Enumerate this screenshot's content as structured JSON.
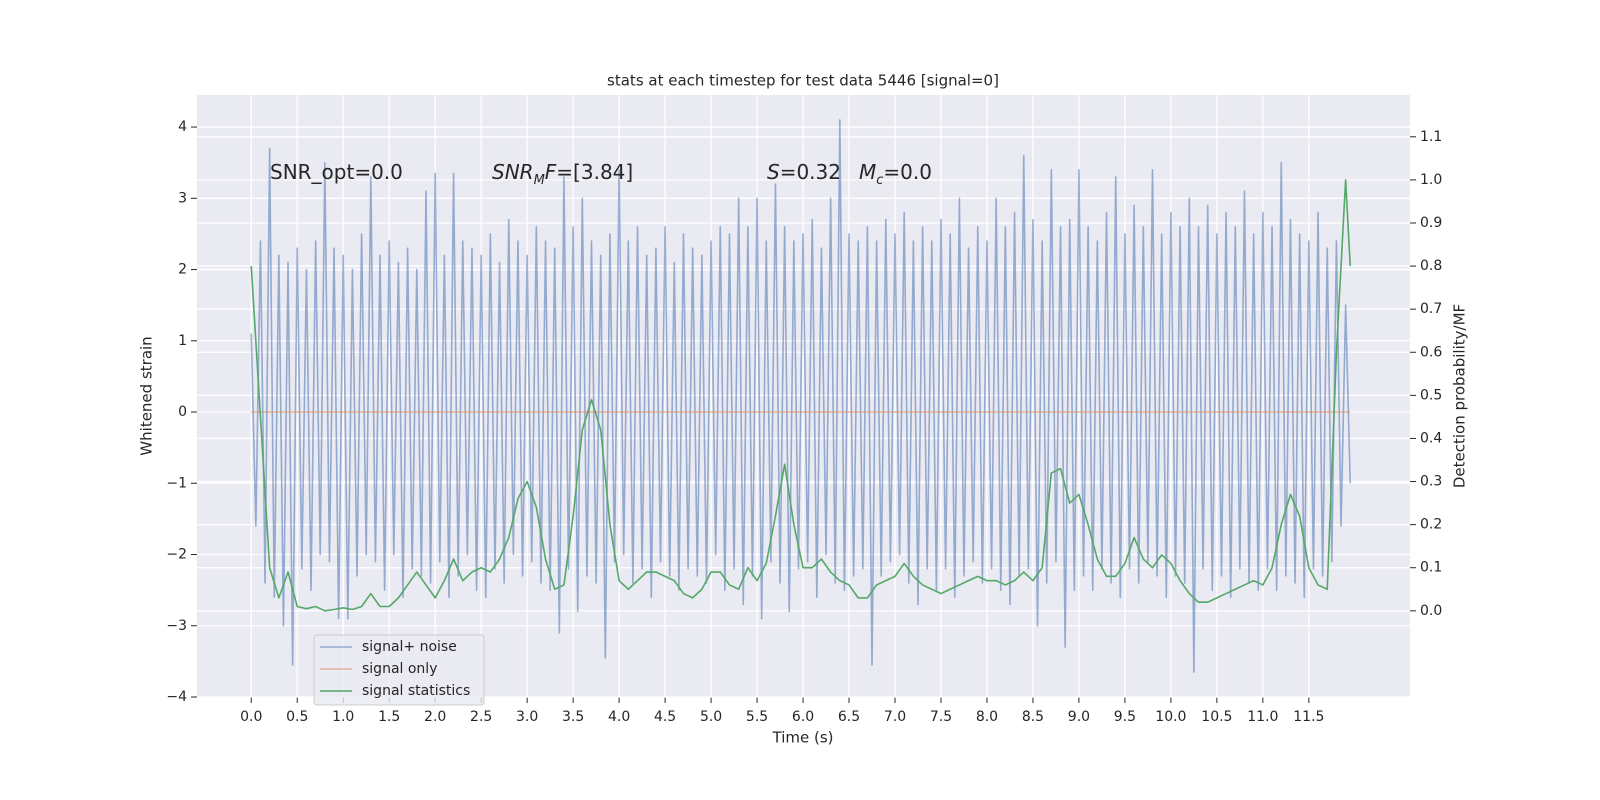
{
  "chart_data": {
    "type": "line",
    "title": "stats at each timestep for test data 5446 [signal=0]",
    "xlabel": "Time (s)",
    "ylabel": "Whitened strain",
    "y2label": "Detection probability/MF",
    "xlim": [
      -0.59,
      12.6
    ],
    "ylim": [
      -4,
      4.45
    ],
    "y2lim": [
      -0.2,
      1.197
    ],
    "xticks": [
      {
        "value": 0,
        "label": "0.0"
      },
      0.5,
      {
        "value": 1,
        "label": "1.0"
      },
      1.5,
      {
        "value": 2,
        "label": "2.0"
      },
      2.5,
      {
        "value": 3,
        "label": "3.0"
      },
      3.5,
      {
        "value": 4,
        "label": "4.0"
      },
      4.5,
      {
        "value": 5,
        "label": "5.0"
      },
      5.5,
      {
        "value": 6,
        "label": "6.0"
      },
      6.5,
      {
        "value": 7,
        "label": "7.0"
      },
      7.5,
      {
        "value": 8,
        "label": "8.0"
      },
      8.5,
      {
        "value": 9,
        "label": "9.0"
      },
      9.5,
      {
        "value": 10,
        "label": "10.0"
      },
      10.5,
      {
        "value": 11,
        "label": "11.0"
      },
      11.5
    ],
    "yticks": [
      {
        "value": -4,
        "label": "−4"
      },
      {
        "value": -3,
        "label": "−3"
      },
      {
        "value": -2,
        "label": "−2"
      },
      {
        "value": -1,
        "label": "−1"
      },
      0,
      1,
      2,
      3,
      4
    ],
    "y2ticks": [
      {
        "value": 0,
        "label": "0.0"
      },
      0.1,
      0.2,
      0.3,
      0.4,
      0.5,
      0.6,
      0.7,
      0.8,
      0.9,
      {
        "value": 1,
        "label": "1.0"
      },
      1.1
    ],
    "grid": true,
    "legend": "lower left",
    "annotations": [
      [
        "SNR_opt=0.0"
      ],
      [
        "SNR",
        "M",
        "F",
        "=[3.84]"
      ],
      [
        "S",
        "=0.32"
      ],
      [
        "M",
        "c",
        "=0.0"
      ]
    ],
    "series": [
      {
        "name": "signal+ noise",
        "color": "#4c72b0",
        "alpha": 0.55,
        "x": [
          0,
          0.05,
          0.1,
          0.15,
          0.2,
          0.25,
          0.3,
          0.35,
          0.4,
          0.45,
          0.5,
          0.55,
          0.6,
          0.65,
          0.7,
          0.75,
          0.8,
          0.85,
          0.9,
          0.95,
          1,
          1.05,
          1.1,
          1.15,
          1.2,
          1.25,
          1.3,
          1.35,
          1.4,
          1.45,
          1.5,
          1.55,
          1.6,
          1.65,
          1.7,
          1.75,
          1.8,
          1.85,
          1.9,
          1.95,
          2,
          2.05,
          2.1,
          2.15,
          2.2,
          2.25,
          2.3,
          2.35,
          2.4,
          2.45,
          2.5,
          2.55,
          2.6,
          2.65,
          2.7,
          2.75,
          2.8,
          2.85,
          2.9,
          2.95,
          3,
          3.05,
          3.1,
          3.15,
          3.2,
          3.25,
          3.3,
          3.35,
          3.4,
          3.45,
          3.5,
          3.55,
          3.6,
          3.65,
          3.7,
          3.75,
          3.8,
          3.85,
          3.9,
          3.95,
          4,
          4.05,
          4.1,
          4.15,
          4.2,
          4.25,
          4.3,
          4.35,
          4.4,
          4.45,
          4.5,
          4.55,
          4.6,
          4.65,
          4.7,
          4.75,
          4.8,
          4.85,
          4.9,
          4.95,
          5,
          5.05,
          5.1,
          5.15,
          5.2,
          5.25,
          5.3,
          5.35,
          5.4,
          5.45,
          5.5,
          5.55,
          5.6,
          5.65,
          5.7,
          5.75,
          5.8,
          5.85,
          5.9,
          5.95,
          6,
          6.05,
          6.1,
          6.15,
          6.2,
          6.25,
          6.3,
          6.35,
          6.4,
          6.45,
          6.5,
          6.55,
          6.6,
          6.65,
          6.7,
          6.75,
          6.8,
          6.85,
          6.9,
          6.95,
          7,
          7.05,
          7.1,
          7.15,
          7.2,
          7.25,
          7.3,
          7.35,
          7.4,
          7.45,
          7.5,
          7.55,
          7.6,
          7.65,
          7.7,
          7.75,
          7.8,
          7.85,
          7.9,
          7.95,
          8,
          8.05,
          8.1,
          8.15,
          8.2,
          8.25,
          8.3,
          8.35,
          8.4,
          8.45,
          8.5,
          8.55,
          8.6,
          8.65,
          8.7,
          8.75,
          8.8,
          8.85,
          8.9,
          8.95,
          9,
          9.05,
          9.1,
          9.15,
          9.2,
          9.25,
          9.3,
          9.35,
          9.4,
          9.45,
          9.5,
          9.55,
          9.6,
          9.65,
          9.7,
          9.75,
          9.8,
          9.85,
          9.9,
          9.95,
          10,
          10.05,
          10.1,
          10.15,
          10.2,
          10.25,
          10.3,
          10.35,
          10.4,
          10.45,
          10.5,
          10.55,
          10.6,
          10.65,
          10.7,
          10.75,
          10.8,
          10.85,
          10.9,
          10.95,
          11,
          11.05,
          11.1,
          11.15,
          11.2,
          11.25,
          11.3,
          11.35,
          11.4,
          11.45,
          11.5,
          11.55,
          11.6,
          11.65,
          11.7,
          11.75,
          11.8,
          11.85,
          11.9,
          11.95
        ],
        "values": [
          1.1,
          -1.6,
          2.4,
          -2.4,
          3.7,
          -2.6,
          2.2,
          -3.0,
          2.1,
          -3.55,
          2.3,
          -2.2,
          2.0,
          -2.5,
          2.4,
          -2.0,
          3.5,
          -2.1,
          2.3,
          -2.9,
          2.2,
          -2.9,
          2.0,
          -2.3,
          2.5,
          -2.0,
          3.3,
          -2.1,
          2.2,
          -2.5,
          2.4,
          -2.0,
          2.1,
          -2.6,
          2.3,
          -2.2,
          2.0,
          -2.3,
          3.1,
          -2.4,
          3.35,
          -2.1,
          2.2,
          -2.6,
          3.35,
          -2.3,
          2.4,
          -2.0,
          2.3,
          -2.5,
          2.2,
          -2.6,
          2.5,
          -2.2,
          2.1,
          -2.4,
          2.7,
          -2.0,
          2.4,
          -2.3,
          2.2,
          -2.1,
          2.6,
          -2.4,
          2.4,
          -2.5,
          2.3,
          -3.1,
          3.3,
          -2.2,
          2.6,
          -2.8,
          3.0,
          -2.3,
          2.4,
          -2.4,
          2.2,
          -3.45,
          2.5,
          -2.1,
          3.4,
          -2.0,
          2.4,
          -2.4,
          2.6,
          -2.2,
          2.2,
          -2.6,
          2.3,
          -2.1,
          2.6,
          -2.3,
          2.1,
          -2.5,
          2.5,
          -2.2,
          2.3,
          -2.3,
          2.2,
          -2.4,
          2.4,
          -2.0,
          2.6,
          -2.5,
          2.5,
          -2.2,
          3.0,
          -2.7,
          2.6,
          -2.3,
          3.0,
          -2.9,
          2.4,
          -2.1,
          3.2,
          -2.4,
          2.6,
          -2.8,
          2.4,
          -2.2,
          2.5,
          -2.1,
          2.7,
          -2.6,
          2.3,
          -2.0,
          3.0,
          -2.4,
          4.1,
          -2.5,
          2.5,
          -2.3,
          2.4,
          -2.2,
          2.6,
          -3.55,
          2.4,
          -2.3,
          2.7,
          -2.1,
          2.5,
          -2.0,
          2.8,
          -2.4,
          2.4,
          -2.7,
          2.6,
          -2.2,
          2.4,
          -2.5,
          2.7,
          -2.2,
          2.5,
          -2.6,
          3.0,
          -2.3,
          2.3,
          -2.1,
          2.6,
          -2.4,
          2.4,
          -2.2,
          3.0,
          -2.5,
          2.6,
          -2.7,
          2.8,
          -2.3,
          3.6,
          -2.2,
          2.7,
          -3.0,
          2.4,
          -2.4,
          3.4,
          -2.1,
          2.6,
          -3.3,
          2.7,
          -2.5,
          3.4,
          -2.3,
          2.6,
          -2.5,
          2.4,
          -2.2,
          2.8,
          -2.4,
          3.3,
          -2.6,
          2.5,
          -2.2,
          2.9,
          -2.4,
          2.6,
          -2.1,
          3.4,
          -2.3,
          2.5,
          -2.6,
          2.8,
          -2.3,
          2.6,
          -2.4,
          3.0,
          -3.65,
          2.6,
          -2.2,
          2.9,
          -2.5,
          2.5,
          -2.3,
          2.8,
          -2.6,
          2.6,
          -2.2,
          3.1,
          -2.4,
          2.5,
          -2.5,
          2.8,
          -2.2,
          2.6,
          -2.5,
          3.5,
          -2.3,
          2.7,
          -2.4,
          2.5,
          -2.6,
          2.4,
          -2.2,
          2.8,
          -2.3,
          2.3,
          -2.1,
          2.4,
          -1.6,
          1.5,
          -1.0
        ]
      },
      {
        "name": "signal only",
        "color": "#dd8452",
        "alpha": 0.55,
        "x": [
          0,
          11.95
        ],
        "values": [
          0,
          0
        ]
      },
      {
        "name": "signal statistics",
        "color": "#55a868",
        "axis": "y2",
        "x": [
          0,
          0.1,
          0.2,
          0.3,
          0.4,
          0.5,
          0.6,
          0.7,
          0.8,
          0.9,
          1,
          1.1,
          1.2,
          1.3,
          1.4,
          1.5,
          1.6,
          1.7,
          1.8,
          1.9,
          2,
          2.1,
          2.2,
          2.3,
          2.4,
          2.5,
          2.6,
          2.7,
          2.8,
          2.9,
          3,
          3.1,
          3.2,
          3.3,
          3.4,
          3.5,
          3.6,
          3.7,
          3.8,
          3.9,
          4,
          4.1,
          4.2,
          4.3,
          4.4,
          4.5,
          4.6,
          4.7,
          4.8,
          4.9,
          5,
          5.1,
          5.2,
          5.3,
          5.4,
          5.5,
          5.6,
          5.7,
          5.8,
          5.9,
          6,
          6.1,
          6.2,
          6.3,
          6.4,
          6.5,
          6.6,
          6.7,
          6.8,
          6.9,
          7,
          7.1,
          7.2,
          7.3,
          7.4,
          7.5,
          7.6,
          7.7,
          7.8,
          7.9,
          8,
          8.1,
          8.2,
          8.3,
          8.4,
          8.5,
          8.6,
          8.7,
          8.8,
          8.9,
          9,
          9.1,
          9.2,
          9.3,
          9.4,
          9.5,
          9.6,
          9.7,
          9.8,
          9.9,
          10,
          10.1,
          10.2,
          10.3,
          10.4,
          10.5,
          10.6,
          10.7,
          10.8,
          10.9,
          11,
          11.1,
          11.2,
          11.3,
          11.4,
          11.5,
          11.6,
          11.7,
          11.8,
          11.9,
          11.95
        ],
        "values": [
          0.8,
          0.45,
          0.1,
          0.03,
          0.09,
          0.01,
          0.005,
          0.01,
          0.0,
          0.003,
          0.007,
          0.003,
          0.01,
          0.04,
          0.01,
          0.01,
          0.03,
          0.06,
          0.09,
          0.06,
          0.03,
          0.07,
          0.12,
          0.07,
          0.09,
          0.1,
          0.09,
          0.12,
          0.17,
          0.26,
          0.3,
          0.24,
          0.12,
          0.05,
          0.06,
          0.22,
          0.42,
          0.49,
          0.42,
          0.2,
          0.07,
          0.05,
          0.07,
          0.09,
          0.09,
          0.08,
          0.07,
          0.04,
          0.03,
          0.05,
          0.09,
          0.09,
          0.06,
          0.05,
          0.1,
          0.07,
          0.11,
          0.22,
          0.34,
          0.2,
          0.1,
          0.1,
          0.12,
          0.09,
          0.07,
          0.06,
          0.03,
          0.03,
          0.06,
          0.07,
          0.08,
          0.11,
          0.08,
          0.06,
          0.05,
          0.04,
          0.05,
          0.06,
          0.07,
          0.08,
          0.07,
          0.07,
          0.06,
          0.07,
          0.09,
          0.07,
          0.1,
          0.32,
          0.33,
          0.25,
          0.27,
          0.2,
          0.12,
          0.08,
          0.08,
          0.11,
          0.17,
          0.12,
          0.1,
          0.13,
          0.11,
          0.07,
          0.04,
          0.02,
          0.02,
          0.03,
          0.04,
          0.05,
          0.06,
          0.07,
          0.06,
          0.1,
          0.2,
          0.27,
          0.22,
          0.1,
          0.06,
          0.05,
          0.6,
          1.0,
          0.8
        ]
      }
    ]
  }
}
